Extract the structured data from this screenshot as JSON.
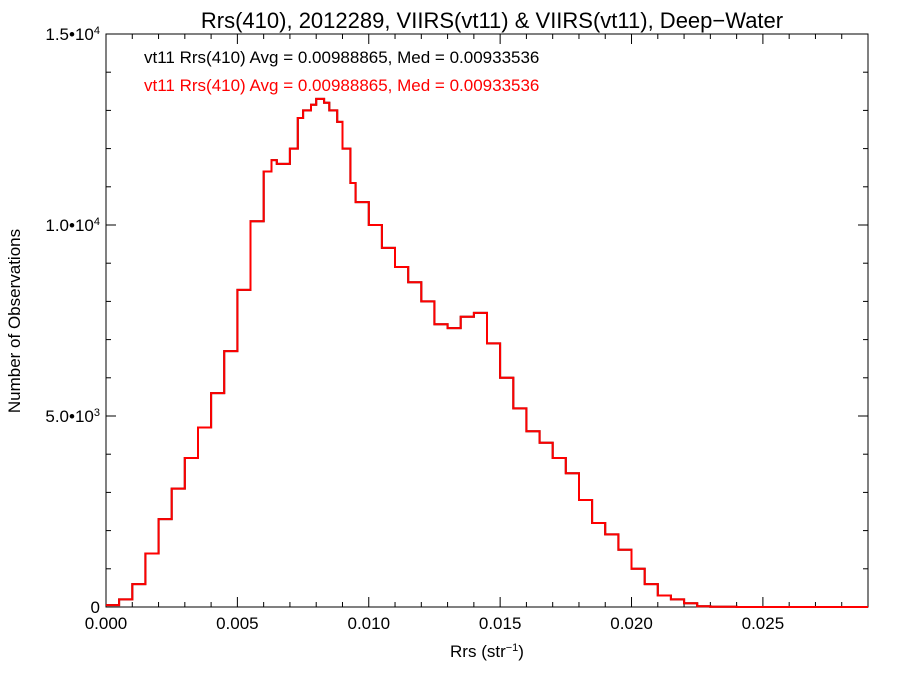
{
  "chart_data": {
    "type": "line",
    "title": "Rrs(410), 2012289, VIIRS(vt11) & VIIRS(vt11), Deep−Water",
    "xlabel_main": "Rrs (str",
    "xlabel_sup": "−1",
    "xlabel_close": ")",
    "ylabel": "Number of Observations",
    "xlim": [
      0,
      0.029
    ],
    "ylim": [
      0,
      15000
    ],
    "x_ticks": [
      {
        "value": 0.0,
        "label": "0.000"
      },
      {
        "value": 0.005,
        "label": "0.005"
      },
      {
        "value": 0.01,
        "label": "0.010"
      },
      {
        "value": 0.015,
        "label": "0.015"
      },
      {
        "value": 0.02,
        "label": "0.020"
      },
      {
        "value": 0.025,
        "label": "0.025"
      }
    ],
    "y_ticks": [
      {
        "value": 0,
        "base": "0",
        "exp": ""
      },
      {
        "value": 5000,
        "base": "5.0•10",
        "exp": "3"
      },
      {
        "value": 10000,
        "base": "1.0•10",
        "exp": "4"
      },
      {
        "value": 15000,
        "base": "1.5•10",
        "exp": "4"
      }
    ],
    "legend": [
      {
        "text": "vt11 Rrs(410) Avg = 0.00988865, Med = 0.00933536",
        "color": "#000000"
      },
      {
        "text": "vt11 Rrs(410) Avg = 0.00988865, Med = 0.00933536",
        "color": "#ff0000"
      }
    ],
    "series": [
      {
        "color": "#000000",
        "x": [
          0.0,
          0.0005,
          0.001,
          0.0015,
          0.002,
          0.0025,
          0.003,
          0.0035,
          0.004,
          0.0045,
          0.005,
          0.0055,
          0.006,
          0.0063,
          0.0065,
          0.0068,
          0.007,
          0.0073,
          0.0075,
          0.0078,
          0.008,
          0.0083,
          0.0085,
          0.0088,
          0.009,
          0.0093,
          0.0095,
          0.01,
          0.0105,
          0.011,
          0.0115,
          0.012,
          0.0125,
          0.013,
          0.0135,
          0.014,
          0.0145,
          0.015,
          0.0155,
          0.016,
          0.0165,
          0.017,
          0.0175,
          0.018,
          0.0185,
          0.019,
          0.0195,
          0.02,
          0.0205,
          0.021,
          0.0215,
          0.022,
          0.0225,
          0.023,
          0.024,
          0.026,
          0.029
        ],
        "y": [
          50,
          200,
          600,
          1400,
          2300,
          3100,
          3900,
          4700,
          5600,
          6700,
          8300,
          10100,
          11400,
          11700,
          11600,
          11600,
          12000,
          12800,
          13000,
          13150,
          13300,
          13200,
          13000,
          12700,
          12000,
          11100,
          10600,
          10000,
          9400,
          8900,
          8500,
          8000,
          7400,
          7300,
          7600,
          7700,
          6900,
          6000,
          5200,
          4600,
          4300,
          3900,
          3500,
          2800,
          2200,
          1900,
          1500,
          1000,
          600,
          300,
          200,
          100,
          20,
          5,
          0,
          0,
          0
        ]
      },
      {
        "color": "#ff0000",
        "x": [
          0.0,
          0.0005,
          0.001,
          0.0015,
          0.002,
          0.0025,
          0.003,
          0.0035,
          0.004,
          0.0045,
          0.005,
          0.0055,
          0.006,
          0.0063,
          0.0065,
          0.0068,
          0.007,
          0.0073,
          0.0075,
          0.0078,
          0.008,
          0.0083,
          0.0085,
          0.0088,
          0.009,
          0.0093,
          0.0095,
          0.01,
          0.0105,
          0.011,
          0.0115,
          0.012,
          0.0125,
          0.013,
          0.0135,
          0.014,
          0.0145,
          0.015,
          0.0155,
          0.016,
          0.0165,
          0.017,
          0.0175,
          0.018,
          0.0185,
          0.019,
          0.0195,
          0.02,
          0.0205,
          0.021,
          0.0215,
          0.022,
          0.0225,
          0.023,
          0.024,
          0.026,
          0.029
        ],
        "y": [
          50,
          200,
          600,
          1400,
          2300,
          3100,
          3900,
          4700,
          5600,
          6700,
          8300,
          10100,
          11400,
          11700,
          11600,
          11600,
          12000,
          12800,
          13000,
          13150,
          13300,
          13200,
          13000,
          12700,
          12000,
          11100,
          10600,
          10000,
          9400,
          8900,
          8500,
          8000,
          7400,
          7300,
          7600,
          7700,
          6900,
          6000,
          5200,
          4600,
          4300,
          3900,
          3500,
          2800,
          2200,
          1900,
          1500,
          1000,
          600,
          300,
          200,
          100,
          20,
          5,
          0,
          0,
          0
        ]
      }
    ]
  }
}
